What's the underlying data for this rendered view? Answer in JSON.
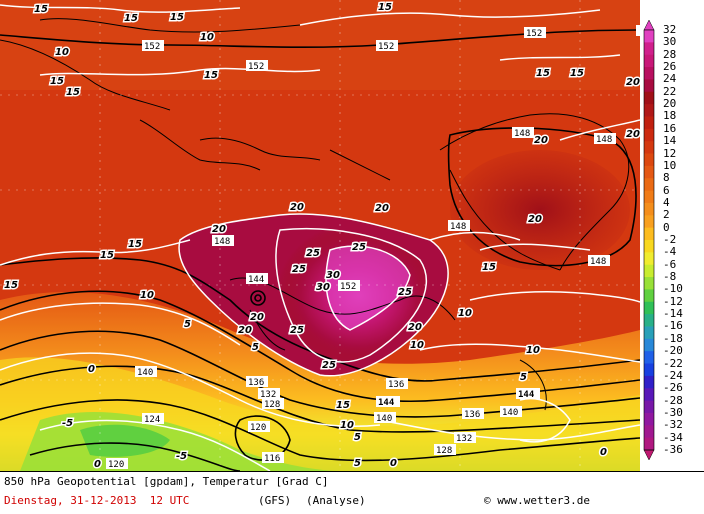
{
  "footer": {
    "line1": "850 hPa Geopotential [gpdam], Temperatur [Grad C]",
    "date": "Dienstag, 31-12-2013  12 UTC",
    "model": "(GFS)",
    "analysis": "(Analyse)",
    "copyright": "© www.wetter3.de"
  },
  "colorbar": {
    "unit": "Grad C",
    "ticks": [
      "32",
      "30",
      "28",
      "26",
      "24",
      "22",
      "20",
      "18",
      "16",
      "14",
      "12",
      "10",
      "8",
      "6",
      "4",
      "2",
      "0",
      "-2",
      "-4",
      "-6",
      "-8",
      "-10",
      "-12",
      "-14",
      "-16",
      "-18",
      "-20",
      "-22",
      "-24",
      "-26",
      "-28",
      "-30",
      "-32",
      "-34",
      "-36"
    ],
    "colors": [
      "#e040c0",
      "#d0208c",
      "#c81878",
      "#b81060",
      "#a80c40",
      "#a01018",
      "#b01818",
      "#c02010",
      "#cc2a10",
      "#d43810",
      "#dc4810",
      "#e45814",
      "#ea6a14",
      "#f07c18",
      "#f48e1c",
      "#f8a020",
      "#fcbc20",
      "#f8d820",
      "#f0ec30",
      "#c8ec30",
      "#98e038",
      "#60d040",
      "#30c058",
      "#28b088",
      "#28a0b8",
      "#2888d8",
      "#2060e8",
      "#1840e0",
      "#3020c8",
      "#5818b8",
      "#7818a8",
      "#9018a0",
      "#a01890",
      "#b01880",
      "#c01870"
    ]
  },
  "labels": {
    "temperature": [
      "15",
      "15",
      "15",
      "15",
      "10",
      "15",
      "10",
      "15",
      "15",
      "15",
      "15",
      "20",
      "20",
      "20",
      "15",
      "20",
      "25",
      "20",
      "25",
      "25",
      "30",
      "30",
      "25",
      "25",
      "20",
      "20",
      "20",
      "25",
      "15",
      "10",
      "5",
      "0",
      "-5",
      "-5",
      "0",
      "5",
      "5",
      "10",
      "10",
      "15",
      "15",
      "10",
      "5",
      "0",
      "15",
      "20",
      "20",
      "10",
      "15",
      "5",
      "0"
    ],
    "geopotential": [
      "152",
      "152",
      "152",
      "152",
      "152",
      "148",
      "148",
      "148",
      "148",
      "148",
      "144",
      "152",
      "140",
      "136",
      "132",
      "128",
      "124",
      "120",
      "116",
      "144",
      "140",
      "136",
      "132",
      "128",
      "124",
      "120",
      "140",
      "144",
      "136"
    ]
  }
}
